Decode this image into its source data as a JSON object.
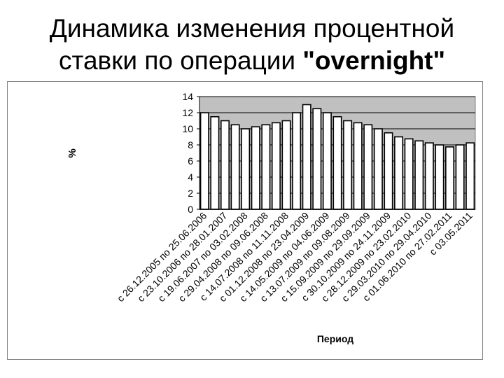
{
  "slide": {
    "title_line1": "Динамика изменения процентной",
    "title_line2_text": "ставки по операции ",
    "title_line2_quoted": "\"overnight\""
  },
  "chart_data": {
    "type": "bar",
    "ylabel": "%",
    "xlabel": "Период",
    "ylim": [
      0,
      14
    ],
    "yticks": [
      0,
      2,
      4,
      6,
      8,
      10,
      12,
      14
    ],
    "grid": true,
    "plot_background": "#c0c0c0",
    "bar_color": "#ffffff",
    "categories": [
      "с 26.12.2005 по 25.06.2006",
      "",
      "с 23.10.2006 по 28.01.2007",
      "",
      "с 19.06.2007 по 03.02.2008",
      "",
      "с 29.04.2008 по 09.06.2008",
      "",
      "с 14.07.2008 по 11.11.2008",
      "",
      "с 01.12.2008 по 23.04.2009",
      "",
      "с 14.05.2009 по 04.06.2009",
      "",
      "с 13.07.2009 по 09.08.2009",
      "",
      "с 15.09.2009 по 29.09.2009",
      "",
      "с 30.10.2009 по 24.11.2009",
      "",
      "с 28.12.2009 по 23.02.2010",
      "",
      "с 29.03.2010 по 29.04.2010",
      "",
      "с 01.06.2010 по 27.02.2011",
      "",
      "с 03.05.2011"
    ],
    "values": [
      12.0,
      11.5,
      11.0,
      10.5,
      10.0,
      10.25,
      10.5,
      10.75,
      11.0,
      12.0,
      13.0,
      12.5,
      12.0,
      11.5,
      11.0,
      10.75,
      10.5,
      10.0,
      9.5,
      9.0,
      8.75,
      8.5,
      8.25,
      8.0,
      7.75,
      8.0,
      8.25
    ]
  }
}
